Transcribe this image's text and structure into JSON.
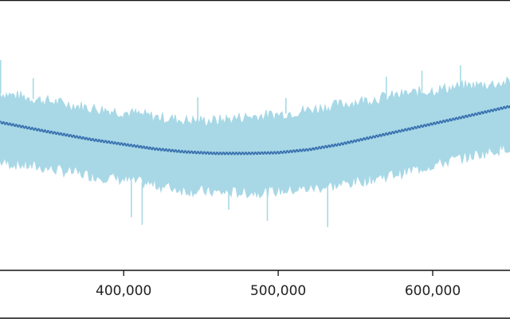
{
  "chart_data": {
    "type": "line",
    "title": "",
    "xlabel": "",
    "ylabel": "",
    "xlim": [
      320000,
      650000
    ],
    "ylim": [
      -1.85,
      1.7
    ],
    "xticks": [
      400000,
      500000,
      600000
    ],
    "xtick_labels": [
      "400,000",
      "500,000",
      "600,000"
    ],
    "grid": false,
    "legend": "none",
    "colors": {
      "band": "#a8d8e6",
      "line": "#3a72b0",
      "axis": "#111111"
    },
    "series": [
      {
        "role": "line",
        "x": [
          320000,
          350000,
          380000,
          400000,
          420000,
          440000,
          460000,
          480000,
          500000,
          520000,
          540000,
          560000,
          580000,
          600000,
          620000,
          650000
        ],
        "y": [
          0.1,
          -0.02,
          -0.13,
          -0.19,
          -0.25,
          -0.29,
          -0.31,
          -0.31,
          -0.3,
          -0.26,
          -0.19,
          -0.1,
          -0.01,
          0.08,
          0.17,
          0.31
        ]
      },
      {
        "role": "band-upper",
        "x": [
          320000,
          350000,
          380000,
          400000,
          420000,
          440000,
          460000,
          480000,
          500000,
          520000,
          540000,
          560000,
          580000,
          600000,
          620000,
          650000
        ],
        "y": [
          0.48,
          0.38,
          0.28,
          0.23,
          0.17,
          0.12,
          0.12,
          0.17,
          0.2,
          0.26,
          0.33,
          0.4,
          0.46,
          0.52,
          0.57,
          0.62
        ]
      },
      {
        "role": "band-lower",
        "x": [
          320000,
          350000,
          380000,
          400000,
          420000,
          440000,
          460000,
          480000,
          500000,
          520000,
          540000,
          560000,
          580000,
          600000,
          620000,
          650000
        ],
        "y": [
          -0.42,
          -0.5,
          -0.6,
          -0.65,
          -0.72,
          -0.79,
          -0.82,
          -0.82,
          -0.8,
          -0.77,
          -0.72,
          -0.64,
          -0.56,
          -0.46,
          -0.36,
          -0.22
        ]
      }
    ],
    "spikes": [
      {
        "x": 320400,
        "y": 0.92
      },
      {
        "x": 341500,
        "y": 0.68
      },
      {
        "x": 405000,
        "y": -1.15
      },
      {
        "x": 412000,
        "y": -1.25
      },
      {
        "x": 448000,
        "y": 0.43
      },
      {
        "x": 468000,
        "y": -1.05
      },
      {
        "x": 493000,
        "y": -1.2
      },
      {
        "x": 505000,
        "y": 0.42
      },
      {
        "x": 532000,
        "y": -1.28
      },
      {
        "x": 570000,
        "y": 0.7
      },
      {
        "x": 593000,
        "y": 0.78
      },
      {
        "x": 618000,
        "y": 0.85
      }
    ]
  }
}
